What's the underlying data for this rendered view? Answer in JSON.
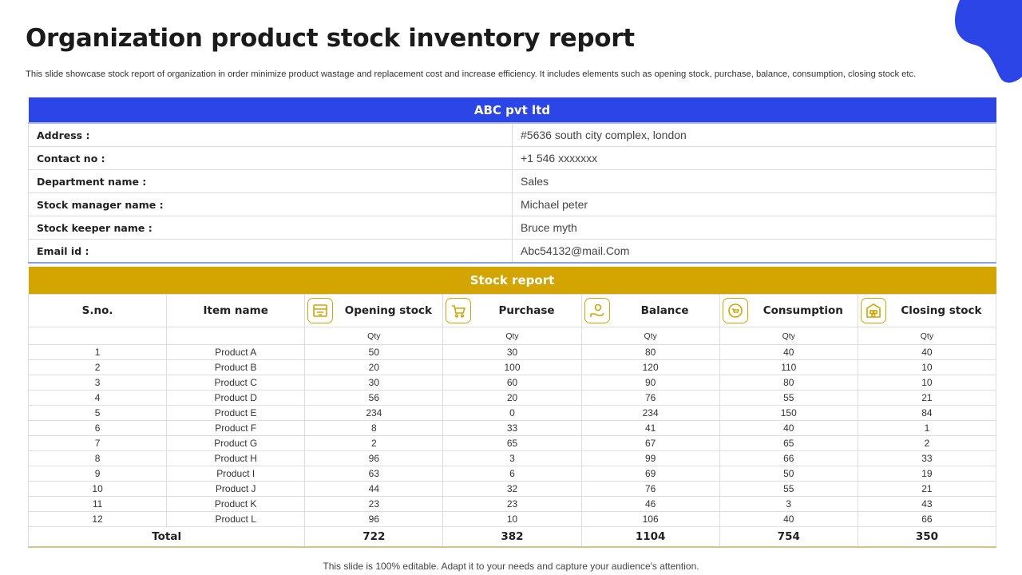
{
  "slide": {
    "title": "Organization product stock inventory report",
    "subtitle": "This slide showcase stock report of organization in order minimize product wastage and replacement cost and increase efficiency. It includes elements such as opening stock, purchase, balance, consumption, closing stock etc.",
    "footer": "This slide is 100% editable. Adapt it to your needs and capture your audience's attention."
  },
  "company": {
    "name": "ABC pvt ltd",
    "rows": [
      {
        "label": "Address :",
        "value": "#5636 south city complex, london"
      },
      {
        "label": "Contact no :",
        "value": "+1 546 xxxxxxx"
      },
      {
        "label": "Department name :",
        "value": "Sales"
      },
      {
        "label": "Stock manager name :",
        "value": "Michael peter"
      },
      {
        "label": "Stock keeper name :",
        "value": "Bruce myth"
      },
      {
        "label": "Email id :",
        "value": "Abc54132@mail.Com"
      }
    ]
  },
  "stock": {
    "title": "Stock report",
    "headers": {
      "sno": "S.no.",
      "item": "Item name",
      "opening": "Opening stock",
      "purchase": "Purchase",
      "balance": "Balance",
      "consumption": "Consumption",
      "closing": "Closing stock"
    },
    "icons": {
      "opening": "store-icon",
      "purchase": "cart-icon",
      "balance": "hand-coin-icon",
      "consumption": "recycle-cart-icon",
      "closing": "warehouse-icon"
    },
    "unit": "Qty",
    "rows": [
      [
        "1",
        "Product A",
        "50",
        "30",
        "80",
        "40",
        "40"
      ],
      [
        "2",
        "Product B",
        "20",
        "100",
        "120",
        "110",
        "10"
      ],
      [
        "3",
        "Product C",
        "30",
        "60",
        "90",
        "80",
        "10"
      ],
      [
        "4",
        "Product D",
        "56",
        "20",
        "76",
        "55",
        "21"
      ],
      [
        "5",
        "Product E",
        "234",
        "0",
        "234",
        "150",
        "84"
      ],
      [
        "6",
        "Product F",
        "8",
        "33",
        "41",
        "40",
        "1"
      ],
      [
        "7",
        "Product G",
        "2",
        "65",
        "67",
        "65",
        "2"
      ],
      [
        "8",
        "Product H",
        "96",
        "3",
        "99",
        "66",
        "33"
      ],
      [
        "9",
        "Product I",
        "63",
        "6",
        "69",
        "50",
        "19"
      ],
      [
        "10",
        "Product J",
        "44",
        "32",
        "76",
        "55",
        "21"
      ],
      [
        "11",
        "Product K",
        "23",
        "23",
        "46",
        "3",
        "43"
      ],
      [
        "12",
        "Product L",
        "96",
        "10",
        "106",
        "40",
        "66"
      ]
    ],
    "total": {
      "label": "Total",
      "values": [
        "722",
        "382",
        "1104",
        "754",
        "350"
      ]
    }
  },
  "colors": {
    "primary_blue": "#2b45e6",
    "accent_gold": "#d4a400"
  }
}
